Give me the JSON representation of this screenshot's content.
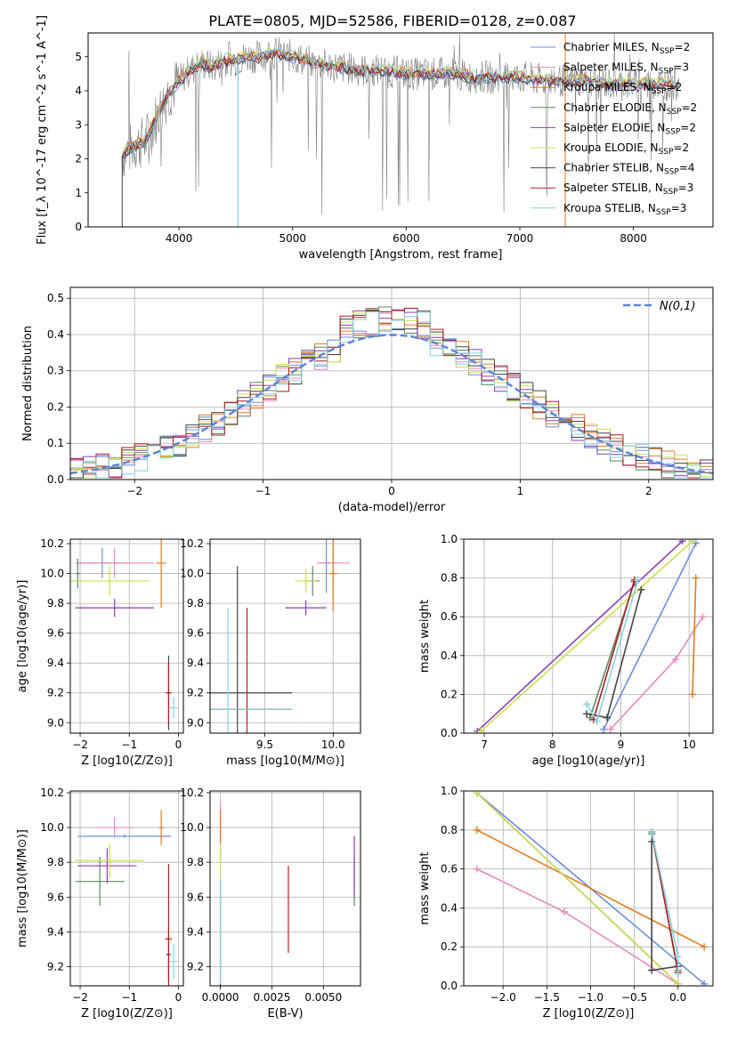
{
  "figure": {
    "title": "PLATE=0805, MJD=52586, FIBERID=0128, z=0.087",
    "colors": {
      "Chabrier MILES": "#6b8fdc",
      "Salpeter MILES": "#e58bbf",
      "Kroupa MILES": "#e07b1f",
      "Chabrier ELODIE": "#5b8a62",
      "Salpeter ELODIE": "#8a3fb2",
      "Kroupa ELODIE": "#c9e04d",
      "Chabrier STELIB": "#444444",
      "Salpeter STELIB": "#b01e1e",
      "Kroupa STELIB": "#86d3dc"
    }
  },
  "chart_data": [
    {
      "type": "line",
      "panel": "spectrum",
      "xlabel": "wavelength [Angstrom, rest frame]",
      "ylabel": "Flux [f_λ 10^-17 erg cm^-2 s^-1 A^-1]",
      "xlim": [
        3200,
        8700
      ],
      "ylim": [
        0,
        5.7
      ],
      "xticks": [
        4000,
        5000,
        6000,
        7000,
        8000
      ],
      "yticks": [
        0,
        1,
        2,
        3,
        4,
        5
      ],
      "grid": false,
      "legend_placement": "top-right",
      "legend": [
        {
          "text": "Chabrier MILES, N",
          "sub": "SSP",
          "eq": "=2"
        },
        {
          "text": "Salpeter MILES, N",
          "sub": "SSP",
          "eq": "=3"
        },
        {
          "text": "Kroupa MILES, N",
          "sub": "SSP",
          "eq": "=2"
        },
        {
          "text": "Chabrier ELODIE, N",
          "sub": "SSP",
          "eq": "=2"
        },
        {
          "text": "Salpeter ELODIE, N",
          "sub": "SSP",
          "eq": "=2"
        },
        {
          "text": "Kroupa ELODIE, N",
          "sub": "SSP",
          "eq": "=2"
        },
        {
          "text": "Chabrier STELIB, N",
          "sub": "SSP",
          "eq": "=4"
        },
        {
          "text": "Salpeter STELIB, N",
          "sub": "SSP",
          "eq": "=3"
        },
        {
          "text": "Kroupa STELIB, N",
          "sub": "SSP",
          "eq": "=3"
        }
      ],
      "data_curve": {
        "x": [
          3500,
          3600,
          3700,
          3800,
          3900,
          4000,
          4100,
          4200,
          4300,
          4400,
          4500,
          4600,
          4700,
          4800,
          4900,
          5000,
          5200,
          5400,
          5600,
          5800,
          6000,
          6200,
          6400,
          6600,
          6800,
          7000,
          7200,
          7400,
          7600,
          7800,
          8000,
          8200,
          8400
        ],
        "y": [
          2.1,
          2.4,
          2.5,
          3.2,
          3.9,
          4.3,
          4.6,
          4.8,
          4.7,
          4.9,
          4.9,
          5.0,
          5.0,
          5.1,
          5.1,
          5.0,
          4.8,
          4.7,
          4.6,
          4.6,
          4.5,
          4.5,
          4.5,
          4.4,
          4.4,
          4.4,
          4.3,
          4.3,
          4.3,
          4.2,
          4.2,
          4.2,
          4.2
        ]
      }
    },
    {
      "type": "line",
      "panel": "residual-distribution",
      "xlabel": "(data-model)/error",
      "ylabel": "Normed distribution",
      "xlim": [
        -2.5,
        2.5
      ],
      "ylim": [
        0,
        0.53
      ],
      "xticks": [
        -2,
        -1,
        0,
        1,
        2
      ],
      "yticks": [
        0.0,
        0.1,
        0.2,
        0.3,
        0.4,
        0.5
      ],
      "grid": true,
      "legend_placement": "top-right",
      "legend": [
        {
          "name": "N(0,1)",
          "style": "dashed"
        }
      ],
      "hist_bin_width": 0.1,
      "hist_peak": 0.5
    },
    {
      "type": "scatter",
      "panel": "age-vs-Z",
      "xlabel": "Z [log10(Z/Z⊙)]",
      "ylabel": "age [log10(age/yr)]",
      "xlim": [
        -2.2,
        0.1
      ],
      "ylim": [
        8.93,
        10.23
      ],
      "xticks": [
        -2,
        -1,
        0
      ],
      "yticks": [
        9.0,
        9.2,
        9.4,
        9.6,
        9.8,
        10.0,
        10.2
      ],
      "grid": true,
      "points": [
        {
          "s": "Chabrier MILES",
          "x": -1.55,
          "y": 10.07,
          "ex": 0.5,
          "ey": 0.1
        },
        {
          "s": "Salpeter MILES",
          "x": -1.3,
          "y": 10.07,
          "ex": 0.8,
          "ey": 0.1
        },
        {
          "s": "Kroupa MILES",
          "x": -0.35,
          "y": 10.07,
          "ex": 0.1,
          "ey": 0.3
        },
        {
          "s": "Chabrier ELODIE",
          "x": -2.05,
          "y": 10.0,
          "ex": 0.05,
          "ey": 0.1
        },
        {
          "s": "Salpeter ELODIE",
          "x": -1.3,
          "y": 9.77,
          "ex": 0.8,
          "ey": 0.06
        },
        {
          "s": "Kroupa ELODIE",
          "x": -1.4,
          "y": 9.95,
          "ex": 0.8,
          "ey": 0.1
        },
        {
          "s": "Chabrier STELIB",
          "x": -0.2,
          "y": 9.2,
          "ex": 0.05,
          "ey": 0.25
        },
        {
          "s": "Salpeter STELIB",
          "x": -0.2,
          "y": 9.2,
          "ex": 0.05,
          "ey": 0.2
        },
        {
          "s": "Kroupa STELIB",
          "x": -0.1,
          "y": 9.1,
          "ex": 0.08,
          "ey": 0.07
        }
      ]
    },
    {
      "type": "scatter",
      "panel": "age-vs-mass",
      "xlabel": "mass [log10(M/M⊙)]",
      "ylabel": "",
      "xlim": [
        9.1,
        10.2
      ],
      "ylim": [
        8.93,
        10.23
      ],
      "xticks": [
        9.5,
        10.0
      ],
      "yticks": [
        9.0,
        9.2,
        9.4,
        9.6,
        9.8,
        10.0,
        10.2
      ],
      "grid": true,
      "points": [
        {
          "s": "Chabrier MILES",
          "x": 9.95,
          "y": 10.07,
          "ex": 0.03,
          "ey": 0.2
        },
        {
          "s": "Salpeter MILES",
          "x": 10.0,
          "y": 10.07,
          "ex": 0.12,
          "ey": 0.1
        },
        {
          "s": "Kroupa MILES",
          "x": 10.0,
          "y": 10.0,
          "ex": 0.03,
          "ey": 0.25
        },
        {
          "s": "Chabrier ELODIE",
          "x": 9.85,
          "y": 9.95,
          "ex": 0.05,
          "ey": 0.1
        },
        {
          "s": "Salpeter ELODIE",
          "x": 9.8,
          "y": 9.77,
          "ex": 0.15,
          "ey": 0.05
        },
        {
          "s": "Kroupa ELODIE",
          "x": 9.8,
          "y": 9.95,
          "ex": 0.08,
          "ey": 0.08
        },
        {
          "s": "Chabrier STELIB",
          "x": 9.3,
          "y": 9.2,
          "ex": 0.4,
          "ey": 0.85
        },
        {
          "s": "Salpeter STELIB",
          "x": 9.37,
          "y": 9.09,
          "ex": 0.33,
          "ey": 0.68
        },
        {
          "s": "Kroupa STELIB",
          "x": 9.23,
          "y": 9.09,
          "ex": 0.47,
          "ey": 0.68
        }
      ]
    },
    {
      "type": "line",
      "panel": "mass-weight-vs-age",
      "xlabel": "age [log10(age/yr)]",
      "ylabel": "mass weight",
      "xlim": [
        6.7,
        10.35
      ],
      "ylim": [
        0,
        1
      ],
      "xticks": [
        7,
        8,
        9,
        10
      ],
      "yticks": [
        0.0,
        0.2,
        0.4,
        0.6,
        0.8,
        1.0
      ],
      "grid": true,
      "series": [
        {
          "s": "Chabrier MILES",
          "x": [
            8.75,
            10.1
          ],
          "y": [
            0.02,
            0.98
          ]
        },
        {
          "s": "Salpeter MILES",
          "x": [
            8.85,
            9.8,
            10.2
          ],
          "y": [
            0.02,
            0.38,
            0.6
          ]
        },
        {
          "s": "Kroupa MILES",
          "x": [
            10.05,
            10.1
          ],
          "y": [
            0.2,
            0.8
          ]
        },
        {
          "s": "Chabrier ELODIE",
          "x": [
            8.55,
            9.2
          ],
          "y": [
            0.08,
            0.78
          ]
        },
        {
          "s": "Salpeter ELODIE",
          "x": [
            6.9,
            9.9
          ],
          "y": [
            0.01,
            0.99
          ]
        },
        {
          "s": "Kroupa ELODIE",
          "x": [
            6.95,
            10.05
          ],
          "y": [
            0.01,
            0.99
          ]
        },
        {
          "s": "Chabrier STELIB",
          "x": [
            8.5,
            8.8,
            9.3,
            8.8
          ],
          "y": [
            0.1,
            0.08,
            0.74,
            0.08
          ]
        },
        {
          "s": "Salpeter STELIB",
          "x": [
            8.6,
            9.2
          ],
          "y": [
            0.07,
            0.79
          ]
        },
        {
          "s": "Kroupa STELIB",
          "x": [
            8.5,
            8.65,
            9.25
          ],
          "y": [
            0.15,
            0.06,
            0.79
          ]
        }
      ]
    },
    {
      "type": "scatter",
      "panel": "mass-vs-Z",
      "xlabel": "Z [log10(Z/Z⊙)]",
      "ylabel": "mass [log10(M/M⊙)]",
      "xlim": [
        -2.2,
        0.1
      ],
      "ylim": [
        9.09,
        10.21
      ],
      "xticks": [
        -2,
        -1,
        0
      ],
      "yticks": [
        9.2,
        9.4,
        9.6,
        9.8,
        10.0,
        10.2
      ],
      "grid": true,
      "points": [
        {
          "s": "Chabrier MILES",
          "x": -1.1,
          "y": 9.95,
          "ex": 0.95,
          "ey": 0.01
        },
        {
          "s": "Salpeter MILES",
          "x": -1.3,
          "y": 10.0,
          "ex": 0.4,
          "ey": 0.06
        },
        {
          "s": "Kroupa MILES",
          "x": -0.35,
          "y": 10.0,
          "ex": 0.05,
          "ey": 0.1
        },
        {
          "s": "Chabrier ELODIE",
          "x": -1.6,
          "y": 9.69,
          "ex": 0.5,
          "ey": 0.14
        },
        {
          "s": "Salpeter ELODIE",
          "x": -1.45,
          "y": 9.78,
          "ex": 0.6,
          "ey": 0.1
        },
        {
          "s": "Kroupa ELODIE",
          "x": -1.4,
          "y": 9.81,
          "ex": 0.7,
          "ey": 0.1
        },
        {
          "s": "Chabrier STELIB",
          "x": -0.2,
          "y": 9.27,
          "ex": 0.05,
          "ey": 0.15
        },
        {
          "s": "Salpeter STELIB",
          "x": -0.2,
          "y": 9.36,
          "ex": 0.07,
          "ey": 0.43
        },
        {
          "s": "Kroupa STELIB",
          "x": -0.1,
          "y": 9.23,
          "ex": 0.08,
          "ey": 0.1
        }
      ]
    },
    {
      "type": "scatter",
      "panel": "mass-vs-EBV",
      "xlabel": "E(B-V)",
      "ylabel": "",
      "xlim": [
        -0.0005,
        0.0068
      ],
      "ylim": [
        9.09,
        10.21
      ],
      "xticks": [
        0.0,
        0.0025,
        0.005
      ],
      "xticklabels": [
        "0.0000",
        "0.0025",
        "0.0050"
      ],
      "yticks": [
        9.2,
        9.4,
        9.6,
        9.8,
        10.0,
        10.2
      ],
      "grid": true,
      "points": [
        {
          "s": "Chabrier MILES",
          "x": 0.0,
          "y": 9.95,
          "ey": 0.15
        },
        {
          "s": "Salpeter MILES",
          "x": 0.0,
          "y": 10.0,
          "ey": 0.15
        },
        {
          "s": "Kroupa MILES",
          "x": 0.0,
          "y": 10.0,
          "ey": 0.1
        },
        {
          "s": "Chabrier ELODIE",
          "x": 0.0065,
          "y": 9.69,
          "ey": 0.14
        },
        {
          "s": "Salpeter ELODIE",
          "x": 0.0065,
          "y": 9.78,
          "ey": 0.17
        },
        {
          "s": "Kroupa ELODIE",
          "x": 0.0,
          "y": 9.81,
          "ey": 0.1
        },
        {
          "s": "Chabrier STELIB",
          "x": 0.0,
          "y": 9.3,
          "ey": 0.4
        },
        {
          "s": "Salpeter STELIB",
          "x": 0.0033,
          "y": 9.53,
          "ey": 0.25
        },
        {
          "s": "Kroupa STELIB",
          "x": 0.0,
          "y": 9.4,
          "ey": 0.3
        }
      ]
    },
    {
      "type": "line",
      "panel": "mass-weight-vs-Z",
      "xlabel": "Z [log10(Z/Z⊙)]",
      "ylabel": "mass weight",
      "xlim": [
        -2.45,
        0.4
      ],
      "ylim": [
        0,
        1
      ],
      "xticks": [
        -2.0,
        -1.5,
        -1.0,
        -0.5,
        0.0
      ],
      "yticks": [
        0.0,
        0.2,
        0.4,
        0.6,
        0.8,
        1.0
      ],
      "grid": true,
      "series": [
        {
          "s": "Chabrier MILES",
          "x": [
            -2.3,
            0.3
          ],
          "y": [
            0.99,
            0.01
          ]
        },
        {
          "s": "Salpeter MILES",
          "x": [
            -2.3,
            -1.3,
            0.0
          ],
          "y": [
            0.6,
            0.38,
            0.01
          ]
        },
        {
          "s": "Kroupa MILES",
          "x": [
            -2.3,
            0.3
          ],
          "y": [
            0.8,
            0.2
          ]
        },
        {
          "s": "Chabrier ELODIE",
          "x": [
            -0.3,
            0.0
          ],
          "y": [
            0.78,
            0.08
          ]
        },
        {
          "s": "Salpeter ELODIE",
          "x": [
            -2.3,
            0.0
          ],
          "y": [
            0.99,
            0.01
          ]
        },
        {
          "s": "Kroupa ELODIE",
          "x": [
            -2.3,
            0.0
          ],
          "y": [
            0.99,
            0.01
          ]
        },
        {
          "s": "Chabrier STELIB",
          "x": [
            -0.3,
            -0.3,
            0.0,
            0.0,
            -0.3
          ],
          "y": [
            0.74,
            0.08,
            0.1,
            0.1,
            0.08
          ]
        },
        {
          "s": "Salpeter STELIB",
          "x": [
            -0.3,
            0.0
          ],
          "y": [
            0.79,
            0.07
          ]
        },
        {
          "s": "Kroupa STELIB",
          "x": [
            -0.3,
            0.0,
            0.0
          ],
          "y": [
            0.79,
            0.15,
            0.06
          ]
        }
      ]
    }
  ]
}
